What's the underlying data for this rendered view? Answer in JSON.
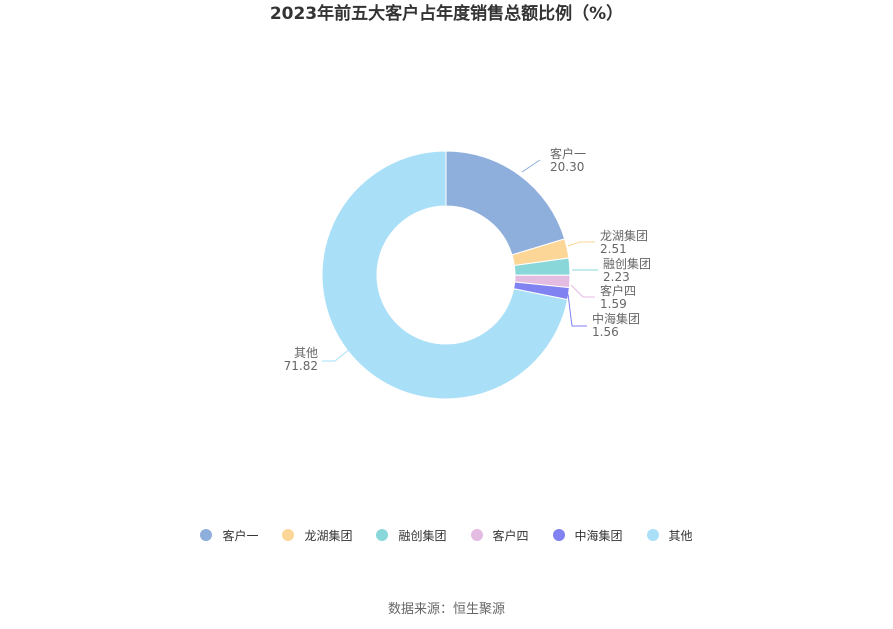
{
  "chart_data": {
    "type": "pie",
    "title": "2023年前五大客户占年度销售总额比例（%）",
    "donut": true,
    "legend_position": "bottom",
    "slices": [
      {
        "label": "客户一",
        "value": 20.3,
        "color": "#8EAEDC"
      },
      {
        "label": "龙湖集团",
        "value": 2.51,
        "color": "#FCD697"
      },
      {
        "label": "融创集团",
        "value": 2.23,
        "color": "#8AD7DA"
      },
      {
        "label": "客户四",
        "value": 1.59,
        "color": "#E4BCE1"
      },
      {
        "label": "中海集团",
        "value": 1.56,
        "color": "#7F82F0"
      },
      {
        "label": "其他",
        "value": 71.82,
        "color": "#AADFF8"
      }
    ]
  },
  "footer": {
    "source": "数据来源：恒生聚源"
  }
}
